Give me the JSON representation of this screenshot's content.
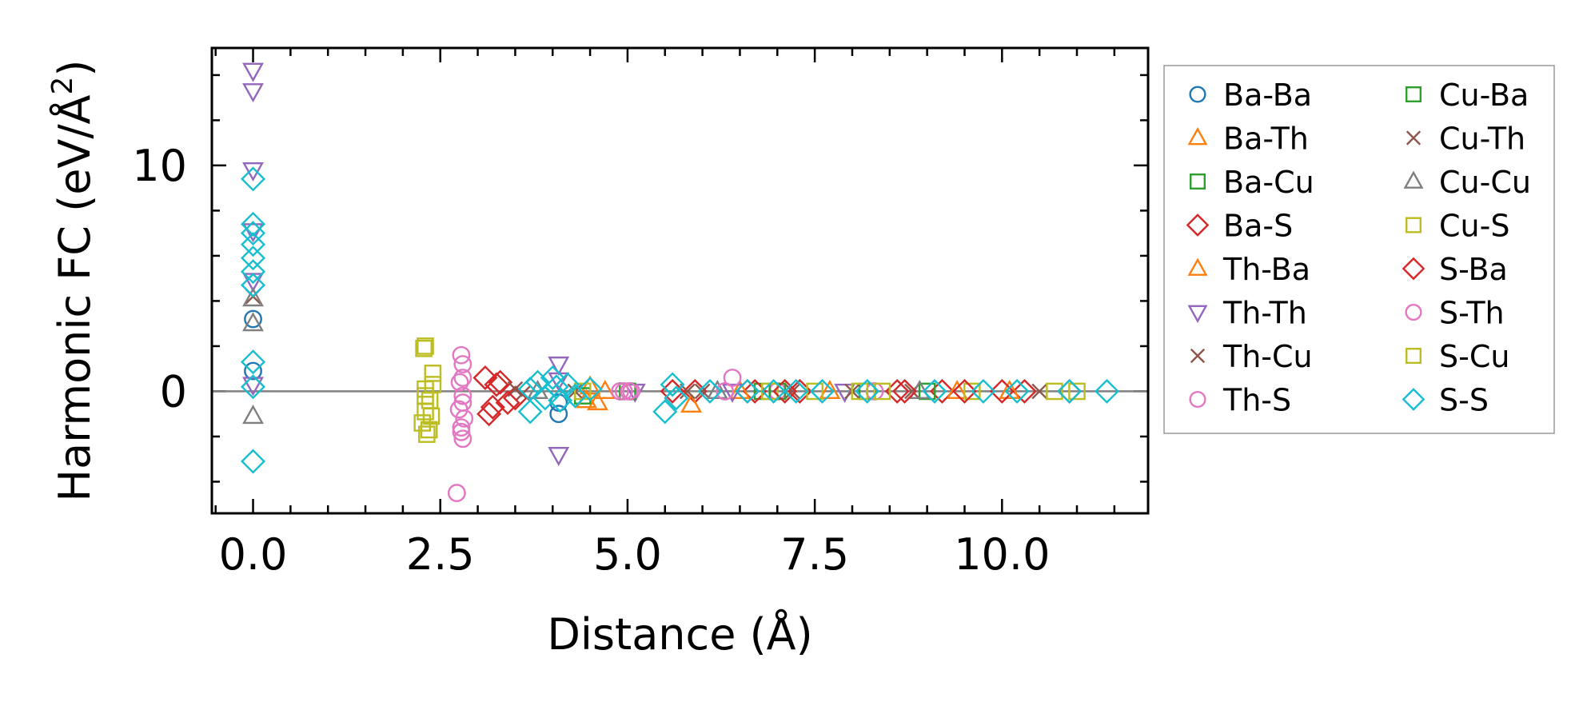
{
  "chart_data": {
    "type": "scatter",
    "title": "",
    "xlabel": "Distance (Å)",
    "ylabel_main": "Harmonic FC (eV/Å",
    "ylabel_sup": "2",
    "ylabel_close": ")",
    "xlim": [
      -0.55,
      11.95
    ],
    "ylim": [
      -5.4,
      15.2
    ],
    "x_major_ticks": [
      0.0,
      2.5,
      5.0,
      7.5,
      10.0
    ],
    "x_tick_labels": [
      "0.0",
      "2.5",
      "5.0",
      "7.5",
      "10.0"
    ],
    "x_minor_step": 0.5,
    "y_major_ticks": [
      0,
      10
    ],
    "y_tick_labels": [
      "0",
      "10"
    ],
    "y_minor_step": 2,
    "zero_line": true,
    "legend": {
      "placement": "outside-right",
      "columns": 2
    },
    "series": [
      {
        "name": "Ba-Ba",
        "marker": "circle",
        "color": "#1f77b4",
        "points": [
          [
            0.0,
            0.9
          ],
          [
            0.0,
            3.2
          ],
          [
            4.08,
            -0.5
          ],
          [
            4.08,
            -1.0
          ]
        ]
      },
      {
        "name": "Ba-Th",
        "marker": "triangle-up",
        "color": "#ff7f0e",
        "points": [
          [
            4.5,
            0.2
          ],
          [
            4.6,
            -0.5
          ],
          [
            4.7,
            0.0
          ]
        ]
      },
      {
        "name": "Ba-Cu",
        "marker": "square",
        "color": "#2ca02c",
        "points": [
          [
            4.4,
            -0.2
          ],
          [
            6.8,
            0.0
          ],
          [
            8.2,
            0.0
          ]
        ]
      },
      {
        "name": "Ba-S",
        "marker": "diamond",
        "color": "#d62728",
        "points": [
          [
            3.3,
            0.4
          ],
          [
            3.5,
            -0.3
          ],
          [
            5.9,
            0.0
          ],
          [
            6.7,
            0.0
          ],
          [
            7.3,
            0.0
          ],
          [
            8.6,
            0.0
          ],
          [
            9.2,
            0.0
          ],
          [
            10.3,
            0.0
          ],
          [
            10.9,
            0.0
          ]
        ]
      },
      {
        "name": "Th-Ba",
        "marker": "triangle-up",
        "color": "#ff7f0e",
        "points": [
          [
            4.45,
            -0.4
          ],
          [
            5.85,
            -0.6
          ],
          [
            6.5,
            0.0
          ],
          [
            7.7,
            0.0
          ],
          [
            9.4,
            0.0
          ],
          [
            10.1,
            0.0
          ]
        ]
      },
      {
        "name": "Th-Th",
        "marker": "triangle-down",
        "color": "#9467bd",
        "points": [
          [
            0.0,
            14.2
          ],
          [
            0.0,
            13.3
          ],
          [
            0.0,
            9.8
          ],
          [
            0.0,
            7.1
          ],
          [
            0.0,
            4.9
          ],
          [
            0.0,
            0.3
          ],
          [
            4.08,
            1.2
          ],
          [
            4.08,
            0.5
          ],
          [
            4.08,
            -2.8
          ],
          [
            5.1,
            0.0
          ],
          [
            6.4,
            0.0
          ],
          [
            7.9,
            0.0
          ]
        ]
      },
      {
        "name": "Th-Cu",
        "marker": "x",
        "color": "#8c564b",
        "points": [
          [
            3.5,
            0.1
          ],
          [
            4.3,
            0.0
          ],
          [
            5.8,
            0.0
          ],
          [
            7.2,
            0.0
          ],
          [
            8.8,
            0.0
          ],
          [
            10.5,
            0.0
          ]
        ]
      },
      {
        "name": "Th-S",
        "marker": "circle",
        "color": "#e377c2",
        "points": [
          [
            2.78,
            1.6
          ],
          [
            2.8,
            1.2
          ],
          [
            2.76,
            0.4
          ],
          [
            2.8,
            -0.2
          ],
          [
            2.75,
            -0.8
          ],
          [
            2.82,
            -1.2
          ],
          [
            2.78,
            -1.6
          ],
          [
            2.8,
            -2.1
          ],
          [
            2.72,
            -4.5
          ],
          [
            4.9,
            0.0
          ],
          [
            5.05,
            0.0
          ],
          [
            6.4,
            0.6
          ],
          [
            7.0,
            0.0
          ],
          [
            8.3,
            0.0
          ]
        ]
      },
      {
        "name": "Cu-Ba",
        "marker": "square",
        "color": "#2ca02c",
        "points": [
          [
            5.0,
            0.0
          ],
          [
            7.0,
            0.0
          ],
          [
            9.0,
            0.0
          ]
        ]
      },
      {
        "name": "Cu-Th",
        "marker": "x",
        "color": "#8c564b",
        "points": [
          [
            0.0,
            4.2
          ],
          [
            3.6,
            -0.1
          ],
          [
            6.0,
            0.0
          ],
          [
            8.0,
            0.0
          ]
        ]
      },
      {
        "name": "Cu-Cu",
        "marker": "triangle-up",
        "color": "#7f7f7f",
        "points": [
          [
            0.0,
            4.1
          ],
          [
            0.0,
            3.0
          ],
          [
            0.0,
            -1.1
          ],
          [
            3.8,
            0.0
          ],
          [
            6.2,
            0.0
          ],
          [
            8.9,
            0.0
          ]
        ]
      },
      {
        "name": "Cu-S",
        "marker": "square",
        "color": "#bcbd22",
        "points": [
          [
            2.3,
            2.0
          ],
          [
            2.28,
            1.9
          ],
          [
            2.4,
            0.8
          ],
          [
            2.3,
            0.1
          ],
          [
            2.36,
            -0.4
          ],
          [
            2.3,
            -0.9
          ],
          [
            2.26,
            -1.4
          ],
          [
            2.32,
            -1.9
          ],
          [
            2.4,
            0.3
          ],
          [
            4.4,
            0.0
          ],
          [
            6.9,
            0.0
          ],
          [
            8.1,
            0.0
          ],
          [
            9.6,
            0.0
          ],
          [
            11.0,
            0.0
          ]
        ]
      },
      {
        "name": "S-Ba",
        "marker": "diamond",
        "color": "#d62728",
        "points": [
          [
            3.1,
            0.6
          ],
          [
            3.2,
            -0.7
          ],
          [
            3.15,
            -1.0
          ],
          [
            3.25,
            0.3
          ],
          [
            3.4,
            -0.5
          ],
          [
            5.6,
            0.0
          ],
          [
            6.6,
            0.0
          ],
          [
            7.1,
            0.0
          ],
          [
            8.7,
            0.0
          ],
          [
            9.5,
            0.0
          ],
          [
            10.0,
            0.0
          ]
        ]
      },
      {
        "name": "S-Th",
        "marker": "circle",
        "color": "#e377c2",
        "points": [
          [
            2.8,
            0.6
          ],
          [
            2.8,
            -0.5
          ],
          [
            2.78,
            -1.8
          ],
          [
            4.95,
            0.0
          ],
          [
            5.02,
            0.0
          ],
          [
            6.3,
            0.0
          ]
        ]
      },
      {
        "name": "S-Cu",
        "marker": "square",
        "color": "#bcbd22",
        "points": [
          [
            2.35,
            -1.7
          ],
          [
            2.3,
            -0.2
          ],
          [
            2.38,
            -1.1
          ],
          [
            7.5,
            0.0
          ],
          [
            8.4,
            0.0
          ],
          [
            10.7,
            0.0
          ]
        ]
      },
      {
        "name": "S-S",
        "marker": "diamond",
        "color": "#17becf",
        "points": [
          [
            0.0,
            9.4
          ],
          [
            0.0,
            7.4
          ],
          [
            0.0,
            7.0
          ],
          [
            0.0,
            6.5
          ],
          [
            0.0,
            5.9
          ],
          [
            0.0,
            5.3
          ],
          [
            0.0,
            4.7
          ],
          [
            0.0,
            1.3
          ],
          [
            0.0,
            0.2
          ],
          [
            0.0,
            -3.1
          ],
          [
            3.7,
            0.1
          ],
          [
            3.7,
            -0.9
          ],
          [
            3.8,
            0.4
          ],
          [
            3.9,
            -0.3
          ],
          [
            4.0,
            0.6
          ],
          [
            4.05,
            0.2
          ],
          [
            4.1,
            -0.4
          ],
          [
            4.2,
            0.3
          ],
          [
            4.3,
            -0.2
          ],
          [
            4.5,
            0.1
          ],
          [
            5.5,
            -0.9
          ],
          [
            5.6,
            0.3
          ],
          [
            5.65,
            -0.3
          ],
          [
            6.1,
            0.0
          ],
          [
            6.6,
            0.0
          ],
          [
            6.95,
            0.0
          ],
          [
            7.25,
            0.0
          ],
          [
            7.6,
            0.0
          ],
          [
            8.2,
            0.0
          ],
          [
            9.1,
            0.0
          ],
          [
            9.75,
            0.0
          ],
          [
            10.2,
            0.0
          ],
          [
            10.9,
            0.0
          ],
          [
            11.4,
            0.0
          ]
        ]
      }
    ]
  }
}
